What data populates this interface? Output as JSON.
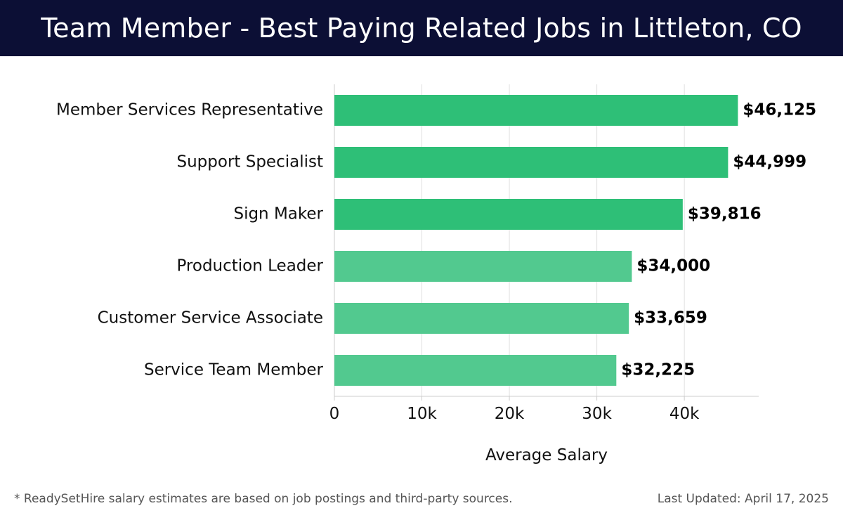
{
  "header": {
    "title": "Team Member - Best Paying Related Jobs in Littleton, CO"
  },
  "chart_data": {
    "type": "bar",
    "orientation": "horizontal",
    "categories": [
      "Member Services Representative",
      "Support Specialist",
      "Sign Maker",
      "Production Leader",
      "Customer Service Associate",
      "Service Team Member"
    ],
    "values": [
      46125,
      44999,
      39816,
      34000,
      33659,
      32225
    ],
    "value_labels": [
      "$46,125",
      "$44,999",
      "$39,816",
      "$34,000",
      "$33,659",
      "$32,225"
    ],
    "xlabel": "Average Salary",
    "ylabel": "",
    "xlim": [
      0,
      48500
    ],
    "xticks": [
      0,
      10000,
      20000,
      30000,
      40000
    ],
    "xtick_labels": [
      "0",
      "10k",
      "20k",
      "30k",
      "40k"
    ],
    "grid": "vertical",
    "colors": {
      "bar_dark": "#2ebf77",
      "bar_light": "#52c98f",
      "grid": "#e0e0e0",
      "axis": "#cccccc"
    }
  },
  "footer": {
    "note": "* ReadySetHire salary estimates are based on job postings and third-party sources.",
    "updated": "Last Updated: April 17, 2025"
  }
}
